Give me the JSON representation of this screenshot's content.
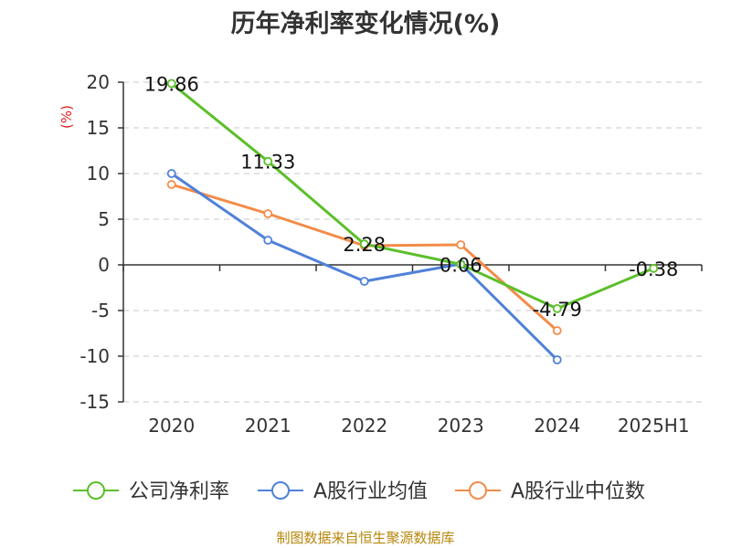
{
  "chart_data": {
    "type": "line",
    "title": "历年净利率变化情况(%)",
    "ylabel": "(%)",
    "xlabel": "",
    "categories": [
      "2020",
      "2021",
      "2022",
      "2023",
      "2024",
      "2025H1"
    ],
    "ylim": [
      -15,
      20
    ],
    "yticks": [
      20,
      15,
      10,
      5,
      0,
      -5,
      -10,
      -15
    ],
    "series": [
      {
        "name": "公司净利率",
        "color": "#5cbf2a",
        "values": [
          19.86,
          11.33,
          2.28,
          0.06,
          -4.79,
          -0.38
        ],
        "labels": [
          "19.86",
          "11.33",
          "2.28",
          "0.06",
          "-4.79",
          "-0.38"
        ]
      },
      {
        "name": "A股行业均值",
        "color": "#4f81d9",
        "values": [
          10.0,
          2.7,
          -1.8,
          0.1,
          -10.4,
          null
        ]
      },
      {
        "name": "A股行业中位数",
        "color": "#f28c4a",
        "values": [
          8.8,
          5.6,
          2.1,
          2.2,
          -7.2,
          null
        ]
      }
    ],
    "grid": true,
    "legend": "bottom"
  },
  "source": "制图数据来自恒生聚源数据库"
}
